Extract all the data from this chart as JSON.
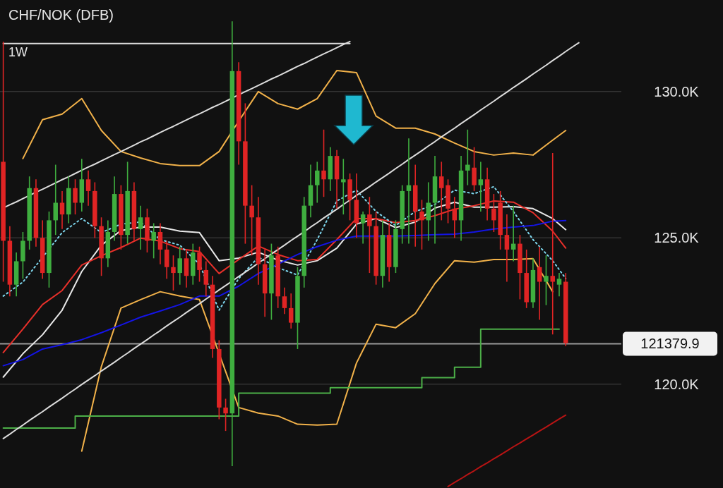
{
  "chart_data": {
    "type": "candlestick",
    "title": "CHF/NOK (DFB)",
    "subtitle": "1W",
    "categories": [
      null,
      null,
      null,
      null,
      null,
      null,
      null,
      null,
      null,
      null,
      null,
      null,
      null,
      null,
      null,
      null,
      null,
      null,
      null,
      null,
      null,
      null,
      null,
      null,
      null,
      null,
      null,
      null,
      null,
      null,
      null,
      null,
      null,
      null,
      null,
      null,
      null,
      null,
      null,
      null,
      null,
      null,
      null,
      null,
      null,
      null,
      null,
      null,
      null,
      null,
      null,
      null,
      null,
      null,
      null,
      null,
      null,
      null,
      null,
      null,
      null,
      null,
      null,
      null,
      null,
      null,
      null,
      null,
      null,
      null,
      null,
      null,
      null,
      null,
      null,
      null,
      null,
      null,
      null,
      null,
      null,
      null,
      null,
      null,
      null,
      null,
      null,
      null,
      null,
      null,
      null,
      null,
      null,
      null,
      null
    ],
    "ohlc": [
      [
        127600,
        131700,
        123500,
        124900
      ],
      [
        124900,
        125400,
        123000,
        123400
      ],
      [
        123400,
        124500,
        123000,
        124200
      ],
      [
        124200,
        125200,
        123600,
        124900
      ],
      [
        124900,
        127100,
        124600,
        126700
      ],
      [
        126700,
        127000,
        124700,
        125000
      ],
      [
        125000,
        125600,
        123600,
        123800
      ],
      [
        123800,
        125900,
        123300,
        125600
      ],
      [
        125600,
        127500,
        125100,
        126200
      ],
      [
        126200,
        126600,
        125300,
        125800
      ],
      [
        125800,
        127100,
        125500,
        126700
      ],
      [
        126700,
        127000,
        125800,
        126200
      ],
      [
        126200,
        127700,
        125900,
        127000
      ],
      [
        127000,
        127300,
        126100,
        126600
      ],
      [
        126600,
        126900,
        125000,
        125400
      ],
      [
        125400,
        125700,
        123700,
        124300
      ],
      [
        124300,
        125600,
        124000,
        125200
      ],
      [
        125200,
        127100,
        124900,
        126500
      ],
      [
        126500,
        126800,
        124600,
        125100
      ],
      [
        125100,
        127600,
        124800,
        126600
      ],
      [
        126600,
        126900,
        124900,
        125300
      ],
      [
        125300,
        126100,
        124600,
        125700
      ],
      [
        125700,
        126000,
        124500,
        124900
      ],
      [
        124900,
        125500,
        124300,
        125200
      ],
      [
        125200,
        125500,
        124100,
        124600
      ],
      [
        124600,
        124900,
        123600,
        124000
      ],
      [
        124000,
        124400,
        123200,
        123800
      ],
      [
        123800,
        124700,
        123400,
        124300
      ],
      [
        124300,
        124600,
        123300,
        123700
      ],
      [
        123700,
        124800,
        123400,
        124500
      ],
      [
        124500,
        124700,
        123500,
        123900
      ],
      [
        123900,
        124200,
        123000,
        123400
      ],
      [
        123400,
        123700,
        120900,
        121200
      ],
      [
        121200,
        121500,
        118800,
        119200
      ],
      [
        119200,
        119500,
        118400,
        119000
      ],
      [
        119000,
        132400,
        117200,
        130700
      ],
      [
        130700,
        131000,
        127500,
        128300
      ],
      [
        128300,
        129600,
        124800,
        126100
      ],
      [
        126100,
        126800,
        124400,
        125700
      ],
      [
        125700,
        126400,
        123400,
        124100
      ],
      [
        124100,
        124600,
        122300,
        123100
      ],
      [
        123100,
        124800,
        122200,
        124400
      ],
      [
        124400,
        124700,
        122600,
        123000
      ],
      [
        123000,
        123300,
        122400,
        122600
      ],
      [
        122600,
        123100,
        121900,
        122100
      ],
      [
        122100,
        124000,
        121200,
        123700
      ],
      [
        123700,
        126400,
        123300,
        126100
      ],
      [
        126100,
        127500,
        125700,
        126800
      ],
      [
        126800,
        127600,
        126200,
        127300
      ],
      [
        127300,
        128700,
        126400,
        127000
      ],
      [
        127000,
        128100,
        126600,
        127800
      ],
      [
        127800,
        128000,
        126000,
        127000
      ],
      [
        126900,
        127700,
        125800,
        127000
      ],
      [
        127000,
        127200,
        125600,
        126300
      ],
      [
        126300,
        127200,
        125000,
        125500
      ],
      [
        125500,
        125900,
        124800,
        125800
      ],
      [
        125800,
        126400,
        123800,
        125400
      ],
      [
        125400,
        125900,
        123400,
        123700
      ],
      [
        123700,
        125600,
        123300,
        125100
      ],
      [
        125100,
        125500,
        123500,
        124000
      ],
      [
        124000,
        125600,
        123800,
        125300
      ],
      [
        125300,
        126800,
        124800,
        126600
      ],
      [
        126600,
        128400,
        124800,
        126800
      ],
      [
        126800,
        127500,
        124700,
        125900
      ],
      [
        125900,
        126300,
        124600,
        125600
      ],
      [
        125600,
        126900,
        124900,
        126200
      ],
      [
        126200,
        127800,
        124800,
        127100
      ],
      [
        127100,
        127600,
        125600,
        126700
      ],
      [
        126800,
        127000,
        125500,
        126000
      ],
      [
        126000,
        126400,
        125000,
        125600
      ],
      [
        125600,
        127800,
        124900,
        127300
      ],
      [
        127300,
        128700,
        126800,
        127500
      ],
      [
        127400,
        128100,
        126600,
        126800
      ],
      [
        126800,
        127600,
        125900,
        127000
      ],
      [
        127000,
        127400,
        125600,
        126000
      ],
      [
        126000,
        126500,
        125200,
        125600
      ],
      [
        126200,
        126600,
        124600,
        125100
      ],
      [
        125100,
        125800,
        123500,
        124600
      ],
      [
        124600,
        126100,
        124200,
        124800
      ],
      [
        124800,
        125100,
        122900,
        123800
      ],
      [
        123800,
        124600,
        122600,
        122800
      ],
      [
        122800,
        124300,
        122600,
        123900
      ],
      [
        124000,
        124700,
        122200,
        123500
      ],
      [
        123500,
        124400,
        122700,
        123700
      ],
      [
        123700,
        127900,
        121700,
        123500
      ],
      [
        123400,
        123800,
        123000,
        123600
      ],
      [
        123500,
        123800,
        121300,
        121400
      ],
      null,
      null,
      null,
      null,
      null,
      null,
      null,
      null
    ],
    "series": [
      {
        "type": "line",
        "color": "#f2b24a",
        "values": [
          null,
          null,
          null,
          127710,
          null,
          null,
          129040,
          null,
          null,
          129230,
          null,
          null,
          129760,
          null,
          null,
          128670,
          null,
          null,
          127950,
          null,
          null,
          127730,
          null,
          null,
          127540,
          null,
          null,
          127470,
          null,
          null,
          127470,
          null,
          null,
          127950,
          null,
          null,
          128990,
          null,
          null,
          130000,
          null,
          null,
          129590,
          null,
          null,
          129400,
          null,
          null,
          129760,
          null,
          null,
          130720,
          null,
          null,
          130650,
          null,
          null,
          129160,
          null,
          null,
          128750,
          null,
          null,
          128750,
          null,
          null,
          128550,
          null,
          null,
          128240,
          null,
          null,
          127950,
          null,
          null,
          127830,
          null,
          null,
          127900,
          null,
          null,
          127830,
          null,
          null,
          128340,
          null,
          128670,
          null,
          null,
          null,
          null,
          null,
          null,
          null,
          null
        ]
      },
      {
        "type": "line",
        "color": "#f2b24a",
        "values": [
          null,
          null,
          null,
          null,
          null,
          null,
          null,
          null,
          null,
          null,
          null,
          null,
          117710,
          null,
          null,
          120600,
          null,
          null,
          122600,
          null,
          null,
          122890,
          null,
          null,
          123160,
          null,
          null,
          123010,
          null,
          null,
          122890,
          null,
          null,
          null,
          null,
          null,
          119200,
          null,
          null,
          119010,
          null,
          null,
          118910,
          null,
          null,
          118630,
          null,
          null,
          118600,
          null,
          null,
          118630,
          null,
          null,
          120720,
          null,
          null,
          122050,
          null,
          null,
          121930,
          null,
          null,
          122410,
          null,
          null,
          123440,
          null,
          null,
          124220,
          null,
          null,
          124170,
          null,
          null,
          124260,
          null,
          null,
          124260,
          null,
          null,
          124290,
          null,
          null,
          123160,
          null,
          null,
          null,
          null,
          null,
          null,
          null,
          null,
          null,
          null
        ]
      },
      {
        "type": "line",
        "color": "#e8e8e8",
        "values": [
          120240,
          null,
          null,
          121040,
          null,
          null,
          121690,
          null,
          null,
          122530,
          null,
          null,
          123850,
          null,
          null,
          124750,
          null,
          null,
          125250,
          null,
          null,
          125370,
          null,
          null,
          125370,
          null,
          null,
          125230,
          null,
          null,
          125180,
          null,
          null,
          124220,
          null,
          null,
          124310,
          null,
          null,
          124510,
          null,
          null,
          124240,
          null,
          null,
          124070,
          null,
          null,
          124220,
          null,
          null,
          124650,
          null,
          null,
          125470,
          null,
          null,
          125660,
          null,
          null,
          125350,
          null,
          null,
          125540,
          null,
          null,
          126020,
          null,
          null,
          126220,
          null,
          null,
          126050,
          null,
          null,
          126050,
          null,
          null,
          126070,
          null,
          null,
          126000,
          null,
          null,
          125660,
          null,
          125280,
          null,
          null,
          null,
          null,
          null,
          null,
          null,
          null
        ]
      },
      {
        "type": "line",
        "color": "#e8302a",
        "values": [
          121080,
          null,
          null,
          121880,
          null,
          null,
          122720,
          null,
          null,
          123200,
          null,
          null,
          124070,
          null,
          null,
          124390,
          null,
          null,
          124670,
          null,
          null,
          124990,
          null,
          null,
          124890,
          null,
          null,
          124630,
          null,
          null,
          124530,
          null,
          null,
          123780,
          null,
          null,
          124260,
          null,
          null,
          124720,
          null,
          null,
          124430,
          null,
          null,
          124220,
          null,
          null,
          124260,
          null,
          null,
          124940,
          null,
          null,
          125660,
          null,
          null,
          125660,
          null,
          null,
          125520,
          null,
          null,
          125590,
          null,
          null,
          125760,
          null,
          null,
          125980,
          null,
          null,
          126100,
          null,
          null,
          126260,
          null,
          null,
          126220,
          null,
          null,
          125860,
          null,
          null,
          125230,
          null,
          124650,
          null,
          null,
          null,
          null,
          null,
          null,
          null,
          null
        ]
      },
      {
        "type": "line",
        "color": "#7fd8ef",
        "line_style": "dotted",
        "values": [
          123010,
          null,
          null,
          123490,
          null,
          null,
          null,
          null,
          null,
          125180,
          null,
          null,
          125660,
          null,
          null,
          125180,
          null,
          null,
          125470,
          null,
          null,
          125540,
          null,
          null,
          124940,
          null,
          null,
          124750,
          null,
          null,
          124100,
          null,
          null,
          122530,
          null,
          null,
          123610,
          null,
          null,
          124340,
          null,
          null,
          123980,
          null,
          null,
          123730,
          null,
          null,
          124940,
          null,
          null,
          126260,
          null,
          null,
          126630,
          null,
          null,
          125900,
          null,
          null,
          125420,
          null,
          null,
          125900,
          null,
          null,
          126140,
          null,
          null,
          126630,
          null,
          null,
          126510,
          null,
          null,
          126750,
          null,
          null,
          125900,
          null,
          null,
          124940,
          null,
          null,
          124220,
          null,
          123610,
          null,
          null,
          null,
          null,
          null,
          null,
          null,
          null
        ]
      },
      {
        "type": "line",
        "color": "#1414e6",
        "values": [
          120630,
          null,
          null,
          120840,
          null,
          null,
          121200,
          null,
          null,
          121350,
          null,
          null,
          121520,
          null,
          null,
          121760,
          null,
          null,
          122020,
          null,
          null,
          122290,
          null,
          null,
          122500,
          null,
          null,
          122720,
          null,
          null,
          123010,
          null,
          null,
          123010,
          null,
          null,
          123350,
          null,
          null,
          123780,
          null,
          null,
          124100,
          null,
          null,
          124430,
          null,
          null,
          124700,
          null,
          null,
          124920,
          null,
          null,
          125060,
          null,
          null,
          125060,
          null,
          null,
          125060,
          null,
          null,
          125080,
          null,
          null,
          125110,
          null,
          null,
          125130,
          null,
          null,
          125200,
          null,
          null,
          125300,
          null,
          null,
          125370,
          null,
          null,
          125420,
          null,
          null,
          125570,
          null,
          125590,
          null,
          null,
          null,
          null,
          null,
          null,
          null,
          null
        ]
      },
      {
        "type": "step",
        "color": "#4caf48",
        "values": [
          118500,
          118500,
          118500,
          118500,
          118500,
          118500,
          118500,
          118500,
          118500,
          118500,
          118500,
          118910,
          118910,
          118910,
          118910,
          118910,
          118910,
          118910,
          118910,
          118910,
          118910,
          118910,
          118910,
          118910,
          118910,
          118910,
          118910,
          118910,
          118910,
          118910,
          118910,
          118910,
          118910,
          118910,
          118910,
          118910,
          119690,
          119690,
          119690,
          119690,
          119690,
          119690,
          119690,
          119690,
          119690,
          119690,
          119690,
          119690,
          119690,
          119690,
          119880,
          119880,
          119880,
          119880,
          119880,
          119880,
          119880,
          119880,
          119880,
          119880,
          119880,
          119880,
          119880,
          119880,
          120220,
          120220,
          120220,
          120220,
          120220,
          120580,
          120580,
          120580,
          120580,
          121880,
          121880,
          121880,
          121880,
          121880,
          121880,
          121880,
          121880,
          121880,
          121880,
          121880,
          121880,
          121880,
          null,
          null,
          null,
          null,
          null,
          null,
          null,
          null,
          null
        ]
      },
      {
        "type": "line",
        "color": "#b81414",
        "values": [
          null,
          null,
          null,
          null,
          null,
          null,
          null,
          null,
          null,
          null,
          null,
          null,
          null,
          null,
          null,
          null,
          null,
          null,
          null,
          null,
          null,
          null,
          null,
          null,
          null,
          null,
          null,
          null,
          null,
          null,
          null,
          null,
          null,
          null,
          null,
          null,
          null,
          null,
          null,
          null,
          null,
          null,
          null,
          null,
          null,
          null,
          null,
          null,
          null,
          null,
          null,
          null,
          null,
          null,
          null,
          null,
          null,
          null,
          null,
          null,
          null,
          null,
          null,
          null,
          null,
          null,
          null,
          null,
          116500,
          116640,
          116770,
          116910,
          117040,
          117180,
          117310,
          117450,
          117580,
          117720,
          117860,
          117990,
          118130,
          118260,
          118400,
          118530,
          118670,
          118810,
          118940,
          null,
          null,
          null,
          null,
          null,
          null,
          null,
          null
        ]
      },
      {
        "type": "line",
        "color": "#dcdcdc",
        "values": [
          131640,
          131640,
          131640,
          131640,
          131640,
          131640,
          131640,
          131640,
          131640,
          131640,
          131640,
          131640,
          131640,
          131640,
          131640,
          131640,
          131640,
          131640,
          131640,
          131640,
          131640,
          131640,
          131640,
          131640,
          131640,
          131640,
          131640,
          131640,
          131640,
          131640,
          131640,
          131640,
          131640,
          131640,
          131640,
          131640,
          131640,
          131640,
          131640,
          131640,
          131640,
          131640,
          131640,
          131640,
          131640,
          131640,
          131640,
          131640,
          131640,
          131640,
          131640,
          131640,
          131640,
          131640,
          null,
          null,
          null,
          null,
          null,
          null,
          null,
          null,
          null,
          null,
          null,
          null,
          null,
          null,
          null,
          null,
          null,
          null,
          null,
          null,
          null,
          null,
          null,
          null,
          null,
          null,
          null,
          null,
          null,
          null,
          null,
          null,
          null,
          null,
          null,
          null,
          null,
          null,
          null,
          null,
          null
        ]
      },
      {
        "type": "line",
        "color": "#dcdcdc",
        "values": [
          126020,
          126130,
          126230,
          126340,
          126450,
          126560,
          126660,
          126770,
          126880,
          126990,
          127090,
          127200,
          127310,
          127420,
          127520,
          127630,
          127740,
          127850,
          127950,
          128060,
          128170,
          128280,
          128380,
          128490,
          128600,
          128710,
          128810,
          128920,
          129030,
          129140,
          129240,
          129350,
          129460,
          129560,
          129670,
          129780,
          129890,
          130000,
          130100,
          130210,
          130320,
          130430,
          130530,
          130640,
          130750,
          130860,
          130960,
          131070,
          131180,
          131290,
          131390,
          131500,
          131610,
          131710,
          null,
          null,
          null,
          null,
          null,
          null,
          null,
          null,
          null,
          null,
          null,
          null,
          null,
          null,
          null,
          null,
          null,
          null,
          null,
          null,
          null,
          null,
          null,
          null,
          null,
          null,
          null,
          null,
          null,
          null,
          null,
          null,
          null,
          null,
          null,
          null,
          null,
          null,
          null,
          null,
          null
        ]
      },
      {
        "type": "line",
        "color": "#dcdcdc",
        "values": [
          118140,
          118290,
          118450,
          118600,
          118760,
          118910,
          119060,
          119220,
          119370,
          119520,
          119680,
          119830,
          119990,
          120140,
          120290,
          120450,
          120600,
          120750,
          120910,
          121060,
          121220,
          121370,
          121520,
          121680,
          121830,
          121990,
          122140,
          122290,
          122450,
          122600,
          122750,
          122910,
          123060,
          123220,
          123370,
          123520,
          123680,
          123830,
          123980,
          124140,
          124290,
          124450,
          124600,
          124750,
          124910,
          125060,
          125210,
          125370,
          125520,
          125680,
          125830,
          125980,
          126140,
          126290,
          126450,
          126600,
          126750,
          126910,
          127060,
          127210,
          127370,
          127520,
          127680,
          127830,
          127980,
          128140,
          128290,
          128450,
          128600,
          128750,
          128910,
          129060,
          129210,
          129370,
          129520,
          129670,
          129830,
          129980,
          130140,
          130290,
          130440,
          130600,
          130750,
          130900,
          131060,
          131210,
          131370,
          131520,
          131670,
          null,
          null,
          null,
          null,
          null,
          null
        ]
      }
    ],
    "ylim": [
      116450,
      133130
    ],
    "yticks": [
      {
        "value": 130000,
        "label": "130.0K"
      },
      {
        "value": 125000,
        "label": "125.0K"
      },
      {
        "value": 120000,
        "label": "120.0K"
      }
    ],
    "grid": "y",
    "ref_lines": [
      {
        "axis": "y",
        "value": 121379.9,
        "label": "121379.9",
        "color": "#9a9a9a"
      }
    ]
  }
}
